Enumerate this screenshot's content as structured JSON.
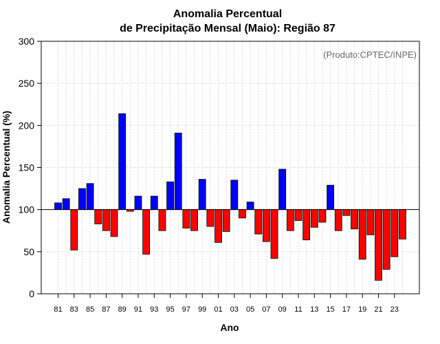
{
  "colors": {
    "positive": "#0000ff",
    "negative": "#ff0000",
    "bar_outline": "#000000",
    "grid": "#d9d9d9",
    "annotation": "#666666"
  },
  "chart_data": {
    "type": "bar",
    "title_line1": "Anomalia Percentual",
    "title_line2": "de Precipitação Mensal (Maio): Região 87",
    "xlabel": "Ano",
    "ylabel": "Anomalia Percentual (%)",
    "annotation": "(Produto:CPTEC/INPE)",
    "ylim": [
      0,
      300
    ],
    "yticks": [
      0,
      50,
      100,
      150,
      200,
      250,
      300
    ],
    "baseline": 100,
    "grid": true,
    "categories": [
      "81",
      "82",
      "83",
      "84",
      "85",
      "86",
      "87",
      "88",
      "89",
      "90",
      "91",
      "92",
      "93",
      "94",
      "95",
      "96",
      "97",
      "98",
      "99",
      "00",
      "01",
      "02",
      "03",
      "04",
      "05",
      "06",
      "07",
      "08",
      "09",
      "10",
      "11",
      "12",
      "13",
      "14",
      "15",
      "16",
      "17",
      "18",
      "19",
      "20",
      "21",
      "22",
      "23",
      "24"
    ],
    "xtick_labels": [
      "81",
      "83",
      "85",
      "87",
      "89",
      "91",
      "93",
      "95",
      "97",
      "99",
      "01",
      "03",
      "05",
      "07",
      "09",
      "11",
      "13",
      "15",
      "17",
      "19",
      "21",
      "23"
    ],
    "values": [
      108,
      113,
      52,
      125,
      131,
      83,
      75,
      68,
      214,
      98,
      116,
      47,
      116,
      75,
      133,
      191,
      78,
      75,
      136,
      80,
      61,
      74,
      135,
      90,
      109,
      71,
      62,
      42,
      148,
      75,
      87,
      64,
      79,
      85,
      129,
      75,
      93,
      77,
      41,
      70,
      16,
      29,
      44,
      65
    ]
  }
}
